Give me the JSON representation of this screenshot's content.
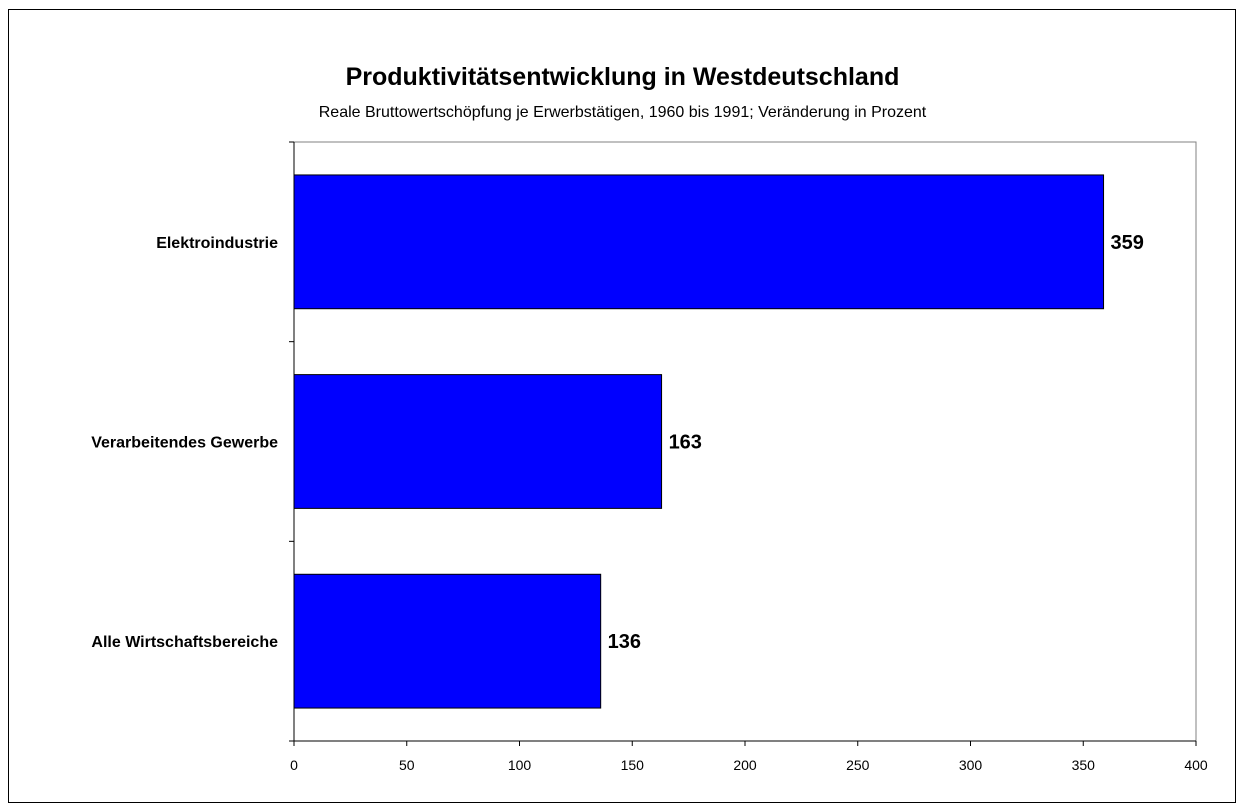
{
  "chart_data": {
    "type": "bar",
    "orientation": "horizontal",
    "title": "Produktivitätsentwicklung in Westdeutschland",
    "subtitle": "Reale Bruttowertschöpfung je Erwerbstätigen, 1960 bis 1991; Veränderung in Prozent",
    "categories": [
      "Elektroindustrie",
      "Verarbeitendes Gewerbe",
      "Alle Wirtschaftsbereiche"
    ],
    "values": [
      359,
      163,
      136
    ],
    "value_labels": [
      "359",
      "163",
      "136"
    ],
    "xlim": [
      0,
      400
    ],
    "x_ticks": [
      0,
      50,
      100,
      150,
      200,
      250,
      300,
      350,
      400
    ],
    "x_tick_labels": [
      "0",
      "50",
      "100",
      "150",
      "200",
      "250",
      "300",
      "350",
      "400"
    ],
    "xlabel": "",
    "ylabel": "",
    "grid": false,
    "legend": "none",
    "colors": {
      "bar_fill": "#0000FF",
      "bar_stroke": "#000000",
      "plot_border": "#808080",
      "axis": "#000000"
    }
  }
}
